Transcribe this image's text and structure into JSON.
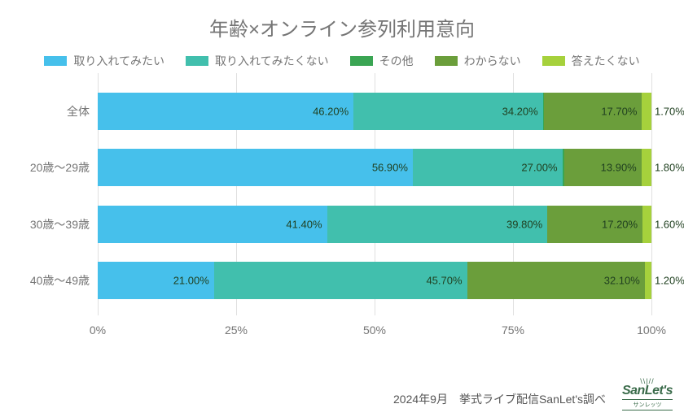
{
  "title": "年齢×オンライン参列利用意向",
  "series": [
    {
      "label": "取り入れてみたい",
      "color": "#46c0eb"
    },
    {
      "label": "取り入れてみたくない",
      "color": "#41bfad"
    },
    {
      "label": "その他",
      "color": "#3aa553"
    },
    {
      "label": "わからない",
      "color": "#6b9e3b"
    },
    {
      "label": "答えたくない",
      "color": "#a6d13c"
    }
  ],
  "categories": [
    {
      "label": "全体",
      "values": [
        46.2,
        34.2,
        0.2,
        17.7,
        1.7
      ]
    },
    {
      "label": "20歳～29歳",
      "values": [
        56.9,
        27.0,
        0.4,
        13.9,
        1.8
      ]
    },
    {
      "label": "30歳～39歳",
      "values": [
        41.4,
        39.8,
        0.0,
        17.2,
        1.6
      ]
    },
    {
      "label": "40歳～49歳",
      "values": [
        21.0,
        45.7,
        0.0,
        32.1,
        1.2
      ]
    }
  ],
  "xaxis": {
    "ticks": [
      0,
      25,
      50,
      75,
      100
    ],
    "labels": [
      "0%",
      "25%",
      "50%",
      "75%",
      "100%"
    ]
  },
  "label_colors": {
    "dark": "#204020",
    "light": "#ffffff"
  },
  "footer": "2024年9月　挙式ライブ配信SanLet's調べ",
  "logo": {
    "main": "SanLet's",
    "sub": "サンレッツ"
  }
}
